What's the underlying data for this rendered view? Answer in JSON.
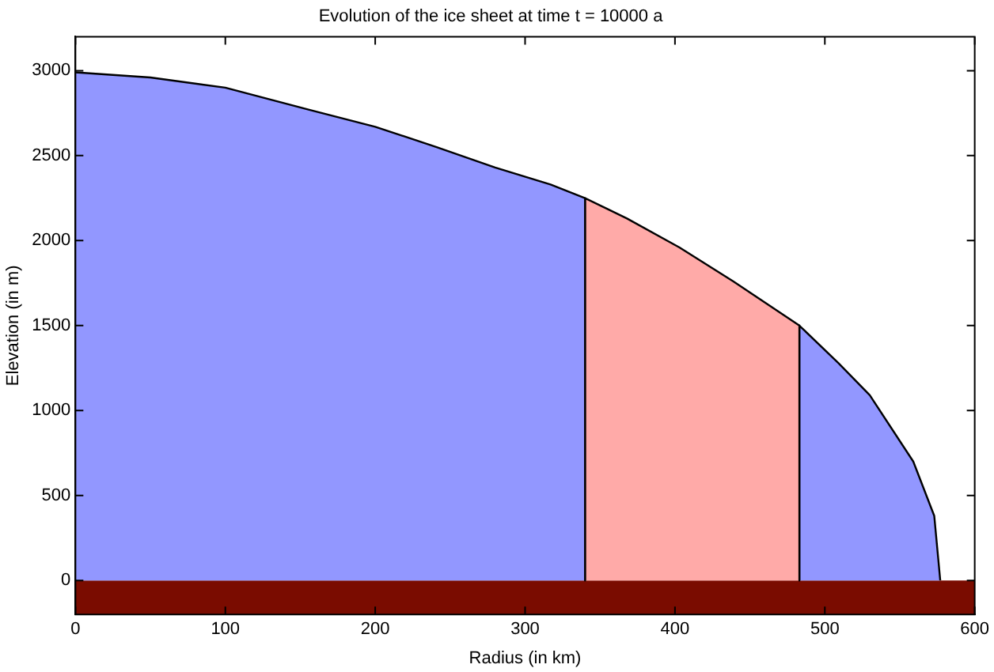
{
  "chart_data": {
    "type": "area",
    "title": "Evolution of the ice sheet at time t = 10000 a",
    "xlabel": "Radius (in km)",
    "ylabel": "Elevation (in m)",
    "series": [
      {
        "color": "#9297ff",
        "x": [
          0,
          50,
          100,
          156,
          200,
          241,
          280,
          317,
          340,
          340
        ],
        "values": [
          2990,
          2960,
          2900,
          2770,
          2670,
          2550,
          2430,
          2330,
          2250,
          0
        ]
      },
      {
        "color": "#ffaaa8",
        "x": [
          340,
          340,
          368,
          403,
          439,
          483,
          483
        ],
        "values": [
          0,
          2250,
          2130,
          1960,
          1760,
          1500,
          0
        ]
      },
      {
        "color": "#9297ff",
        "x": [
          483,
          483,
          509,
          530,
          559,
          573,
          577
        ],
        "values": [
          0,
          1500,
          1280,
          1090,
          700,
          380,
          0
        ]
      }
    ],
    "bands": [
      {
        "axis": "y",
        "from": -200,
        "to": 0,
        "color": "#7a0c00"
      }
    ],
    "xlim": [
      0,
      600
    ],
    "xticks": [
      0,
      100,
      200,
      300,
      400,
      500,
      600
    ],
    "ylim": [
      -200,
      3200
    ],
    "yticks": [
      0,
      500,
      1000,
      1500,
      2000,
      2500,
      3000
    ],
    "grid": false,
    "legend": false
  }
}
